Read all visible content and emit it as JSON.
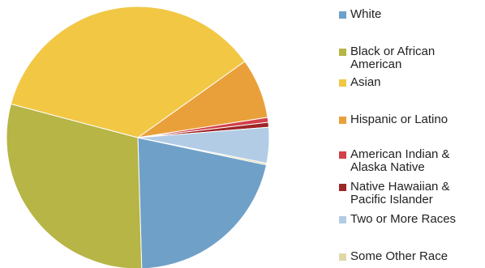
{
  "chart_data": {
    "type": "pie",
    "title": "",
    "legend": "right",
    "slices": [
      {
        "label": "White",
        "value": 21.2,
        "color": "#6fa0c8"
      },
      {
        "label": "Black or African American",
        "value": 29.6,
        "color": "#b6b546"
      },
      {
        "label": "Asian",
        "value": 36.0,
        "color": "#f2c744"
      },
      {
        "label": "Hispanic or Latino",
        "value": 7.4,
        "color": "#eaa03a"
      },
      {
        "label": "American Indian & Alaska Native",
        "value": 0.6,
        "color": "#d2404a"
      },
      {
        "label": "Native Hawaiian & Pacific Islander",
        "value": 0.6,
        "color": "#9c2626"
      },
      {
        "label": "Two or More Races",
        "value": 4.4,
        "color": "#b3cce6"
      },
      {
        "label": "Some Other Race",
        "value": 0.2,
        "color": "#e0d9a6"
      }
    ]
  }
}
